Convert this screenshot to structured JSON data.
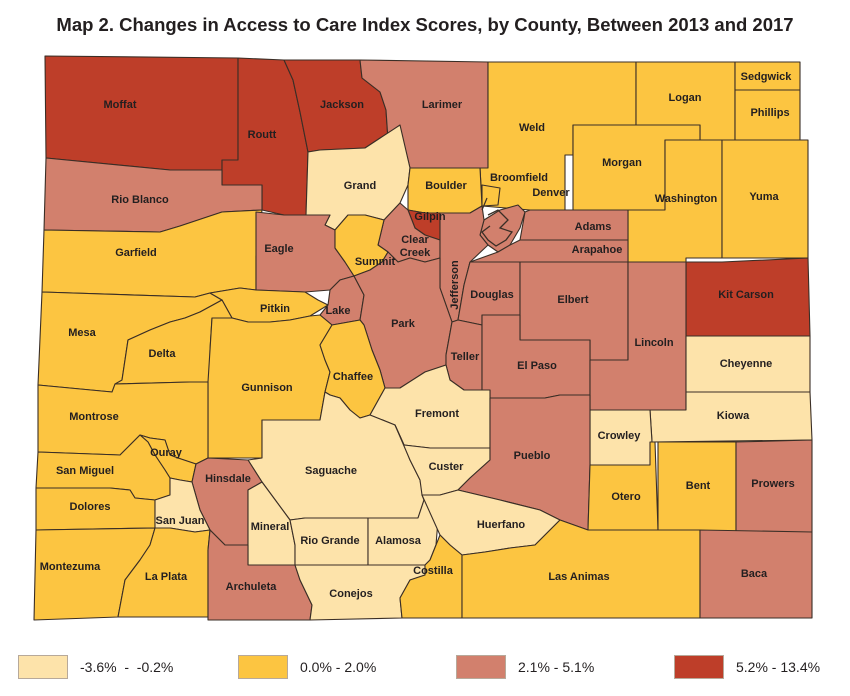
{
  "title": "Map 2. Changes in Access to Care Index Scores, by County, Between 2013 and 2017",
  "colors": {
    "c1": "#fde3aa",
    "c2": "#fcc541",
    "c3": "#d2806d",
    "c4": "#be3e29",
    "border": "#3a2e26"
  },
  "legend": [
    {
      "label": "-3.6%  -  -0.2%",
      "color": "#fde3aa"
    },
    {
      "label": "0.0% - 2.0%",
      "color": "#fcc541"
    },
    {
      "label": "2.1% - 5.1%",
      "color": "#d2806d"
    },
    {
      "label": "5.2% - 13.4%",
      "color": "#be3e29"
    }
  ],
  "counties": [
    {
      "name": "Moffat",
      "cls": "c4"
    },
    {
      "name": "Routt",
      "cls": "c4"
    },
    {
      "name": "Jackson",
      "cls": "c4"
    },
    {
      "name": "Larimer",
      "cls": "c3"
    },
    {
      "name": "Weld",
      "cls": "c2"
    },
    {
      "name": "Logan",
      "cls": "c2"
    },
    {
      "name": "Sedgwick",
      "cls": "c2"
    },
    {
      "name": "Phillips",
      "cls": "c2"
    },
    {
      "name": "Morgan",
      "cls": "c2"
    },
    {
      "name": "Washington",
      "cls": "c2"
    },
    {
      "name": "Yuma",
      "cls": "c2"
    },
    {
      "name": "Rio Blanco",
      "cls": "c3"
    },
    {
      "name": "Grand",
      "cls": "c1"
    },
    {
      "name": "Boulder",
      "cls": "c2"
    },
    {
      "name": "Broomfield",
      "cls": "c2"
    },
    {
      "name": "Denver",
      "cls": "c3"
    },
    {
      "name": "Gilpin",
      "cls": "c4"
    },
    {
      "name": "Clear Creek",
      "cls": "c3"
    },
    {
      "name": "Adams",
      "cls": "c3"
    },
    {
      "name": "Arapahoe",
      "cls": "c3"
    },
    {
      "name": "Garfield",
      "cls": "c2"
    },
    {
      "name": "Eagle",
      "cls": "c3"
    },
    {
      "name": "Summit",
      "cls": "c2"
    },
    {
      "name": "Jefferson",
      "cls": "c3"
    },
    {
      "name": "Douglas",
      "cls": "c3"
    },
    {
      "name": "Elbert",
      "cls": "c3"
    },
    {
      "name": "Kit Carson",
      "cls": "c4"
    },
    {
      "name": "Mesa",
      "cls": "c2"
    },
    {
      "name": "Pitkin",
      "cls": "c2"
    },
    {
      "name": "Lake",
      "cls": "c3"
    },
    {
      "name": "Park",
      "cls": "c3"
    },
    {
      "name": "Teller",
      "cls": "c3"
    },
    {
      "name": "El Paso",
      "cls": "c3"
    },
    {
      "name": "Lincoln",
      "cls": "c3"
    },
    {
      "name": "Cheyenne",
      "cls": "c1"
    },
    {
      "name": "Delta",
      "cls": "c2"
    },
    {
      "name": "Gunnison",
      "cls": "c2"
    },
    {
      "name": "Chaffee",
      "cls": "c2"
    },
    {
      "name": "Fremont",
      "cls": "c1"
    },
    {
      "name": "Kiowa",
      "cls": "c1"
    },
    {
      "name": "Montrose",
      "cls": "c2"
    },
    {
      "name": "Ouray",
      "cls": "c2"
    },
    {
      "name": "Saguache",
      "cls": "c1"
    },
    {
      "name": "Custer",
      "cls": "c1"
    },
    {
      "name": "Crowley",
      "cls": "c1"
    },
    {
      "name": "Pueblo",
      "cls": "c3"
    },
    {
      "name": "San Miguel",
      "cls": "c2"
    },
    {
      "name": "Hinsdale",
      "cls": "c3"
    },
    {
      "name": "Otero",
      "cls": "c2"
    },
    {
      "name": "Bent",
      "cls": "c2"
    },
    {
      "name": "Prowers",
      "cls": "c3"
    },
    {
      "name": "Dolores",
      "cls": "c2"
    },
    {
      "name": "San Juan",
      "cls": "c1"
    },
    {
      "name": "Mineral",
      "cls": "c1"
    },
    {
      "name": "Rio Grande",
      "cls": "c1"
    },
    {
      "name": "Alamosa",
      "cls": "c1"
    },
    {
      "name": "Huerfano",
      "cls": "c1"
    },
    {
      "name": "Montezuma",
      "cls": "c2"
    },
    {
      "name": "La Plata",
      "cls": "c2"
    },
    {
      "name": "Archuleta",
      "cls": "c3"
    },
    {
      "name": "Conejos",
      "cls": "c1"
    },
    {
      "name": "Costilla",
      "cls": "c2"
    },
    {
      "name": "Las Animas",
      "cls": "c2"
    },
    {
      "name": "Baca",
      "cls": "c3"
    }
  ]
}
